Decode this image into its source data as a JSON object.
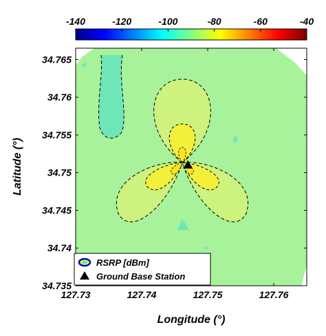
{
  "chart_data": {
    "type": "heatmap",
    "colorbar": {
      "ticks": [
        -140,
        -120,
        -100,
        -80,
        -60,
        -40
      ],
      "range": [
        -140,
        -40
      ],
      "colormap": [
        "#00008f",
        "#0000ff",
        "#00ffff",
        "#ffff00",
        "#ff0000",
        "#800000"
      ]
    },
    "x_axis": {
      "label": "Longitude (°)",
      "ticks": [
        127.73,
        127.74,
        127.75,
        127.76
      ],
      "range": [
        127.73,
        127.765
      ]
    },
    "y_axis": {
      "label": "Latitude (°)",
      "ticks": [
        34.735,
        34.74,
        34.745,
        34.75,
        34.755,
        34.76,
        34.765
      ],
      "range": [
        34.735,
        34.7665
      ]
    },
    "base_station": {
      "lon": 127.747,
      "lat": 34.751
    },
    "legend": {
      "position": "bottom-left",
      "entries": [
        "RSRP [dBm]",
        "Ground Base Station"
      ]
    },
    "zone_colors": {
      "outer": "#a7f29b",
      "low": "#6fe6b8",
      "mid": "#cdf27d",
      "high": "#f2f03a",
      "peak": "#fbe51e"
    }
  }
}
